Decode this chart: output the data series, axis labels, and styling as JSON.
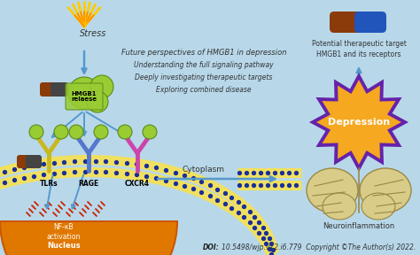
{
  "bg_color": "#b8d8ea",
  "doi_text_normal": "10.5498/wjp.v12.i6.779  Copyright ©The Author(s) 2022.",
  "doi_bold": "DOI:",
  "stress_text": "Stress",
  "hmgb1_text": "HMGB1\nrelaese",
  "tlrs_text": "TLRs",
  "rage_text": "RAGE",
  "cxcr4_text": "CXCR4",
  "cytoplasm_text": "Cytoplasm",
  "nucleus_text": "Nucleus",
  "nfkb_text": "NF-κB\nactivation",
  "depression_text": "Depression",
  "neuroinflam_text": "Neuroinflammation",
  "future_lines": [
    "Future perspectives of HMGB1 in depression",
    "Understanding the full signaling pathway",
    "Deeply investigating therapeutic targets",
    "Exploring combined disease"
  ],
  "potential_text": "Potential therapeutic target\nHMGB1 and its receptors",
  "arrow_color": "#5599cc",
  "gold_color": "#f5a820",
  "orange_color": "#e07800",
  "green_color": "#99cc33",
  "yellow_color": "#f0e060",
  "blue_dot_color": "#1a2e99",
  "purple_color": "#6622aa",
  "magenta_color": "#cc44aa",
  "brain_color": "#d8cc88",
  "text_color": "#333333",
  "capsule_brown": "#8B3A0A",
  "capsule_blue": "#2255bb",
  "receptor_tlr_color": "#c8b820",
  "receptor_rage_color": "#5577cc",
  "receptor_cxcr4_color": "#cc44aa"
}
